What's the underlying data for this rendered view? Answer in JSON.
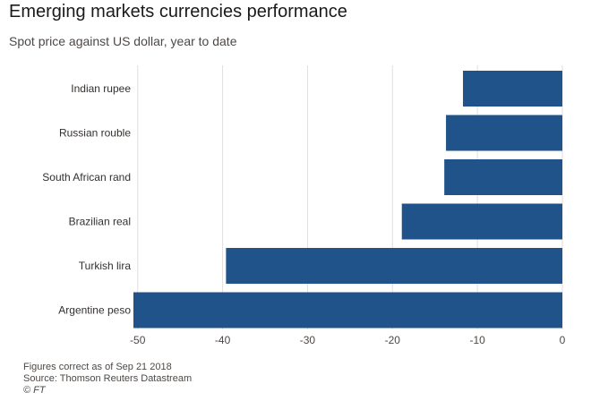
{
  "header": {
    "title": "Emerging markets currencies performance",
    "subtitle": "Spot price against US dollar, year to date"
  },
  "chart_data": {
    "type": "bar",
    "orientation": "horizontal",
    "categories": [
      "Indian rupee",
      "Russian rouble",
      "South African rand",
      "Brazilian real",
      "Turkish lira",
      "Argentine peso"
    ],
    "values": [
      -11.7,
      -13.7,
      -13.9,
      -18.9,
      -39.6,
      -50.5
    ],
    "xlim": [
      -50.5,
      0
    ],
    "xticks": [
      -50,
      -40,
      -30,
      -20,
      -10,
      0
    ],
    "grid": "vertical",
    "bar_color": "#1f538a",
    "title": "Emerging markets currencies performance",
    "subtitle": "Spot price against US dollar, year to date",
    "xlabel": "",
    "ylabel": ""
  },
  "footer": {
    "note": "Figures correct as of Sep 21 2018",
    "source": "Source: Thomson Reuters Datastream",
    "credit": "© FT"
  }
}
